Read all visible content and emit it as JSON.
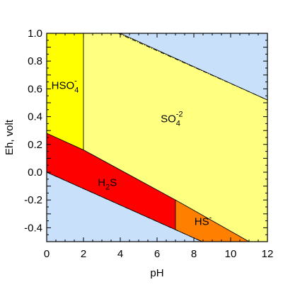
{
  "chart_data": {
    "type": "area",
    "title": "",
    "xlabel": "pH",
    "ylabel": "Eh, volt",
    "xlim": [
      0,
      12
    ],
    "ylim": [
      -0.5,
      1.0
    ],
    "x_ticks": [
      "0",
      "2",
      "4",
      "6",
      "8",
      "10",
      "12"
    ],
    "y_ticks": [
      "-0.4",
      "-0.2",
      "0.0",
      "0.2",
      "0.4",
      "0.6",
      "0.8",
      "1.0"
    ],
    "grid": false,
    "background_color": "#c9e0fb",
    "water_stability_lines": [
      {
        "name": "upper",
        "points": [
          [
            0,
            1.23
          ],
          [
            12,
            0.52
          ]
        ]
      },
      {
        "name": "lower",
        "points": [
          [
            0,
            0.0
          ],
          [
            12,
            -0.71
          ]
        ]
      }
    ],
    "regions": [
      {
        "species": "HSO4-",
        "label": {
          "base": "HSO",
          "sub": "4",
          "sup": "-"
        },
        "color": "#ffff00",
        "label_at": [
          1.0,
          0.6
        ],
        "polygon": [
          [
            0,
            1.0
          ],
          [
            2,
            1.0
          ],
          [
            2,
            0.16
          ],
          [
            0,
            0.28
          ]
        ]
      },
      {
        "species": "SO4-2",
        "label": {
          "base": "SO",
          "sub": "4",
          "sup": "-2"
        },
        "color": "#ffff80",
        "label_at": [
          6.8,
          0.36
        ],
        "polygon": [
          [
            2,
            1.0
          ],
          [
            4,
            1.0
          ],
          [
            12,
            0.52
          ],
          [
            12,
            -0.5
          ],
          [
            11.0,
            -0.5
          ],
          [
            7,
            -0.2
          ],
          [
            2,
            0.16
          ]
        ]
      },
      {
        "species": "H2S",
        "label": {
          "base": "H",
          "sub": "2",
          "after": "S"
        },
        "color": "#ff0000",
        "label_at": [
          3.3,
          -0.1
        ],
        "polygon": [
          [
            0,
            0.28
          ],
          [
            2,
            0.16
          ],
          [
            7,
            -0.2
          ],
          [
            7,
            -0.414
          ],
          [
            0,
            0.0
          ]
        ]
      },
      {
        "species": "HS-",
        "label": {
          "base": "HS",
          "sup": "-"
        },
        "color": "#ff8000",
        "label_at": [
          8.5,
          -0.38
        ],
        "polygon": [
          [
            7,
            -0.2
          ],
          [
            11.0,
            -0.5
          ],
          [
            8.45,
            -0.5
          ],
          [
            7,
            -0.414
          ]
        ]
      }
    ]
  }
}
